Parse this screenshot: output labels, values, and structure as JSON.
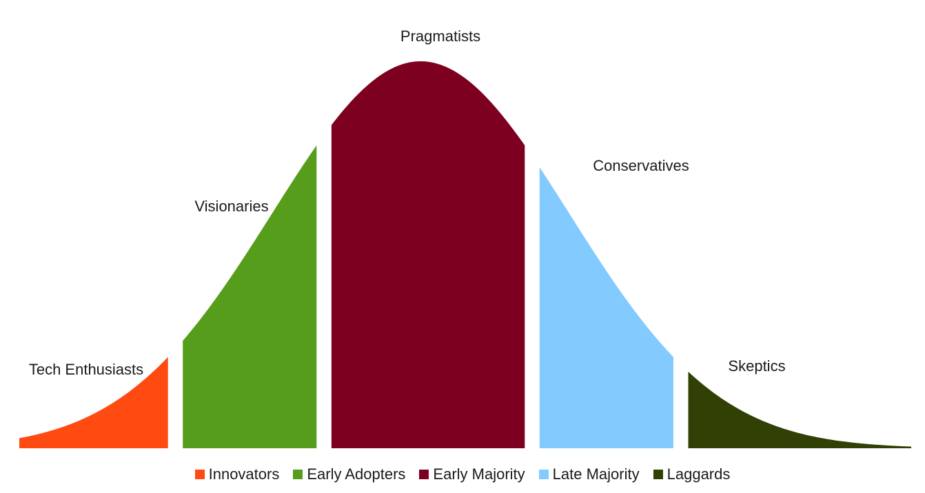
{
  "chart_data": {
    "type": "area",
    "title": "",
    "xlabel": "",
    "ylabel": "",
    "grid": false,
    "legend_position": "bottom",
    "distribution": "normal",
    "x_range": [
      -3,
      3
    ],
    "segments": [
      {
        "name": "Innovators",
        "label": "Tech Enthusiasts",
        "x_start": -3.0,
        "x_end": -2.0,
        "color": "#ff4a12"
      },
      {
        "name": "Early Adopters",
        "label": "Visionaries",
        "x_start": -1.9,
        "x_end": -1.0,
        "color": "#579d1c"
      },
      {
        "name": "Early Majority",
        "label": "Pragmatists",
        "x_start": -0.9,
        "x_end": 0.4,
        "color": "#7e0021"
      },
      {
        "name": "Late Majority",
        "label": "Conservatives",
        "x_start": 0.5,
        "x_end": 1.4,
        "color": "#83caff"
      },
      {
        "name": "Laggards",
        "label": "Skeptics",
        "x_start": 1.5,
        "x_end": 3.0,
        "color": "#314004"
      }
    ]
  }
}
